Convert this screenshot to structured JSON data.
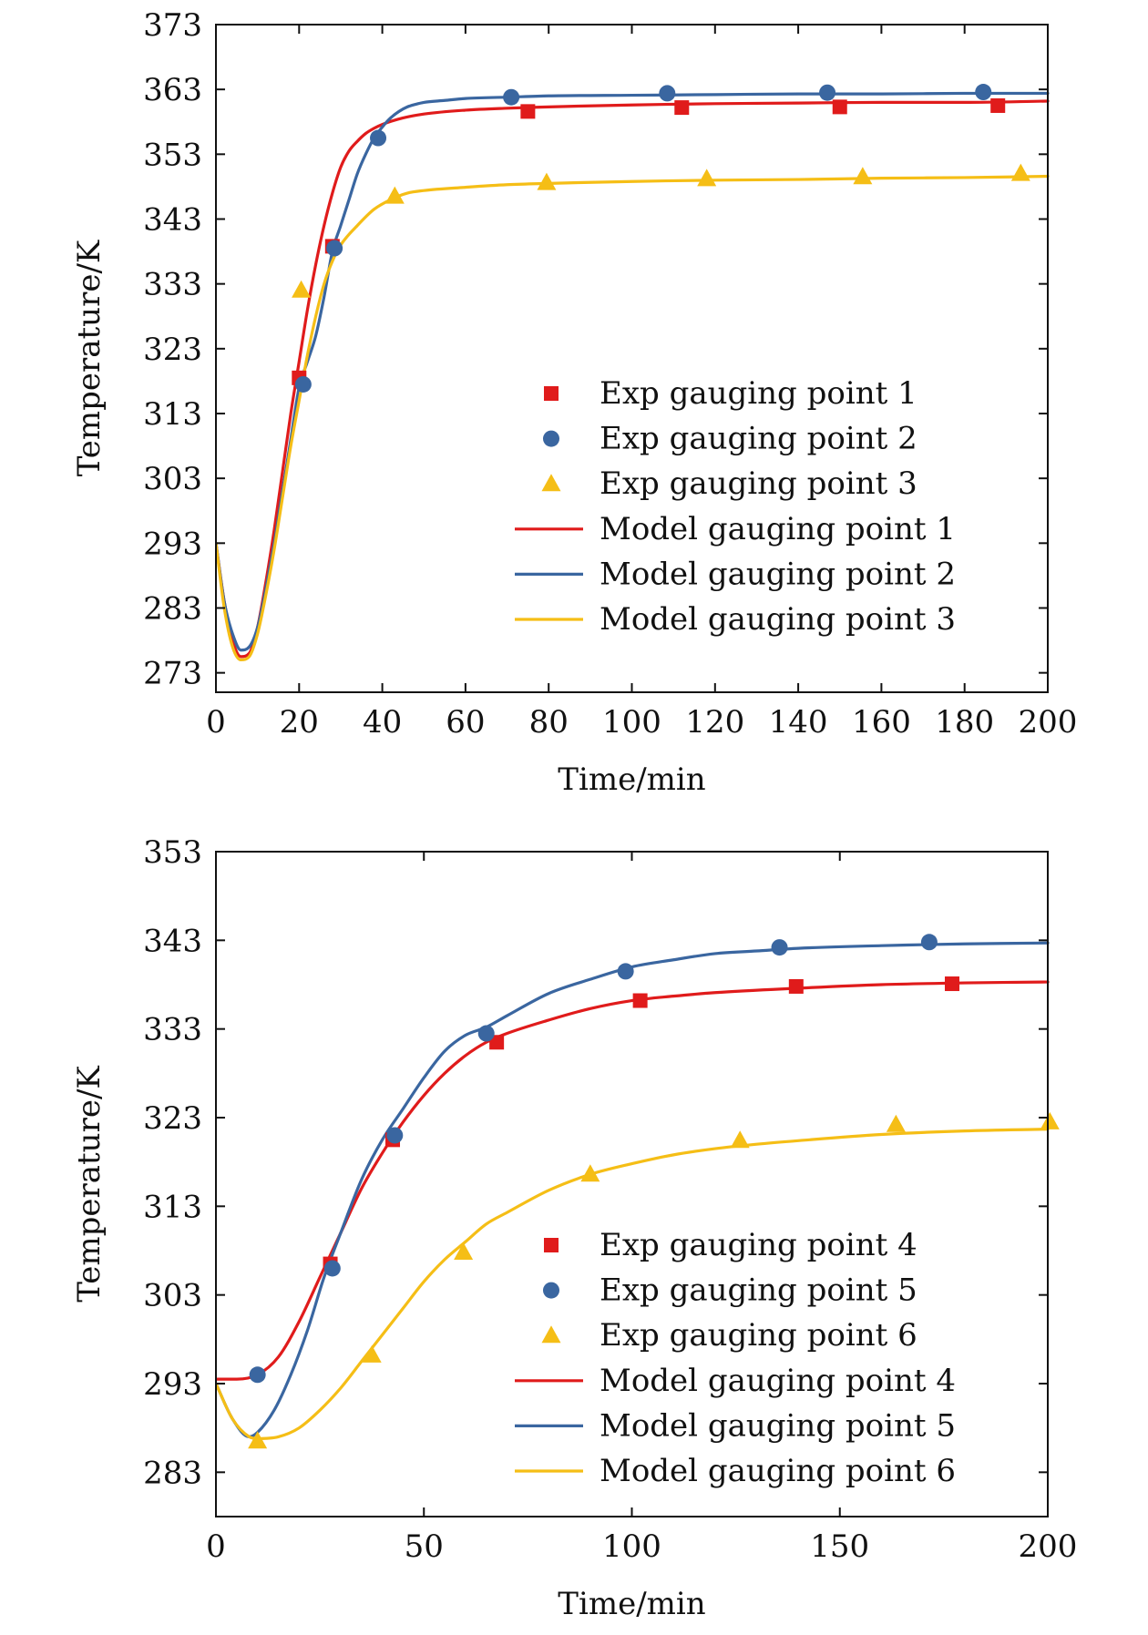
{
  "colors": {
    "red": "#e01b1b",
    "blue": "#3a66a0",
    "yellow": "#f5be16",
    "axis": "#111111"
  },
  "chart_data": [
    {
      "type": "line",
      "xlabel": "Time/min",
      "ylabel": "Temperature/K",
      "xlim": [
        0,
        200
      ],
      "ylim": [
        270,
        373
      ],
      "xticks": [
        0,
        20,
        40,
        60,
        80,
        100,
        120,
        140,
        160,
        180,
        200
      ],
      "yticks": [
        273,
        283,
        293,
        303,
        313,
        323,
        333,
        343,
        353,
        363,
        373
      ],
      "grid": false,
      "legend_position": "bottom-right",
      "series": [
        {
          "name": "Exp gauging point 1",
          "kind": "scatter",
          "marker": "square",
          "color": "red",
          "x": [
            20,
            28,
            75,
            112,
            150,
            188
          ],
          "y": [
            318.5,
            338.8,
            359.6,
            360.2,
            360.3,
            360.5
          ]
        },
        {
          "name": "Exp gauging point 2",
          "kind": "scatter",
          "marker": "circle",
          "color": "blue",
          "x": [
            21,
            28.5,
            39,
            71,
            108.5,
            147,
            184.5
          ],
          "y": [
            317.5,
            338.5,
            355.5,
            361.8,
            362.4,
            362.5,
            362.6
          ]
        },
        {
          "name": "Exp gauging point 3",
          "kind": "scatter",
          "marker": "triangle",
          "color": "yellow",
          "x": [
            20.5,
            43,
            79.5,
            118,
            155.5,
            193.5
          ],
          "y": [
            332,
            346.5,
            348.6,
            349.2,
            349.5,
            350
          ]
        },
        {
          "name": "Model gauging point 1",
          "kind": "line",
          "color": "red",
          "x": [
            0,
            2,
            4,
            6,
            8,
            10,
            12,
            14,
            16,
            18,
            20,
            22,
            24,
            26,
            28,
            30,
            32,
            34,
            36,
            38,
            40,
            45,
            50,
            60,
            70,
            80,
            100,
            120,
            140,
            160,
            180,
            200
          ],
          "y": [
            293,
            284,
            278,
            275.5,
            276,
            280,
            287,
            295,
            304,
            313,
            321,
            329,
            336,
            342,
            347,
            351,
            353.5,
            355,
            356.2,
            357,
            357.6,
            358.6,
            359.2,
            359.8,
            360.1,
            360.3,
            360.6,
            360.8,
            360.9,
            361,
            361,
            361.2
          ]
        },
        {
          "name": "Model gauging point 2",
          "kind": "line",
          "color": "blue",
          "x": [
            0,
            2,
            4,
            6,
            8,
            10,
            12,
            14,
            16,
            18,
            20,
            22,
            24,
            26,
            28,
            30,
            32,
            34,
            36,
            38,
            40,
            42,
            44,
            46,
            48,
            50,
            55,
            60,
            70,
            80,
            100,
            120,
            140,
            160,
            180,
            200
          ],
          "y": [
            293,
            284,
            279,
            276.5,
            277,
            280,
            286,
            293,
            301,
            309,
            317,
            321,
            325,
            331,
            338,
            342,
            346,
            350,
            353,
            355.5,
            357.2,
            358.6,
            359.6,
            360.3,
            360.7,
            361,
            361.3,
            361.6,
            361.8,
            362,
            362.1,
            362.2,
            362.3,
            362.3,
            362.4,
            362.4
          ]
        },
        {
          "name": "Model gauging point 3",
          "kind": "line",
          "color": "yellow",
          "x": [
            0,
            2,
            4,
            6,
            8,
            10,
            12,
            14,
            16,
            18,
            20,
            22,
            24,
            26,
            28,
            30,
            34,
            38,
            42,
            46,
            50,
            60,
            70,
            80,
            100,
            120,
            140,
            160,
            180,
            200
          ],
          "y": [
            293,
            283,
            277,
            275,
            275.5,
            279,
            285,
            292,
            300,
            308,
            315,
            322,
            328,
            333,
            336.5,
            339,
            342,
            344.5,
            346,
            347,
            347.4,
            347.9,
            348.3,
            348.5,
            348.8,
            349,
            349.1,
            349.3,
            349.4,
            349.6
          ]
        }
      ]
    },
    {
      "type": "line",
      "xlabel": "Time/min",
      "ylabel": "Temperature/K",
      "xlim": [
        0,
        200
      ],
      "ylim": [
        278,
        353
      ],
      "xticks": [
        0,
        50,
        100,
        150,
        200
      ],
      "yticks": [
        283,
        293,
        303,
        313,
        323,
        333,
        343,
        353
      ],
      "grid": false,
      "legend_position": "bottom-right",
      "series": [
        {
          "name": "Exp gauging point 4",
          "kind": "scatter",
          "marker": "square",
          "color": "red",
          "x": [
            27.5,
            42.5,
            67.5,
            102,
            139.5,
            177
          ],
          "y": [
            306.5,
            320.5,
            331.5,
            336.2,
            337.8,
            338.1
          ]
        },
        {
          "name": "Exp gauging point 5",
          "kind": "scatter",
          "marker": "circle",
          "color": "blue",
          "x": [
            10,
            28,
            43,
            65,
            98.5,
            135.5,
            171.5
          ],
          "y": [
            294,
            306,
            321,
            332.5,
            339.5,
            342.2,
            342.8
          ]
        },
        {
          "name": "Exp gauging point 6",
          "kind": "scatter",
          "marker": "triangle",
          "color": "yellow",
          "x": [
            10,
            37.5,
            59.5,
            90,
            126,
            163.5,
            200.5
          ],
          "y": [
            286.5,
            296.2,
            307.8,
            316.6,
            320.4,
            322.2,
            322.5
          ]
        },
        {
          "name": "Model gauging point 4",
          "kind": "line",
          "color": "red",
          "x": [
            0,
            5,
            10,
            15,
            20,
            25,
            30,
            35,
            40,
            45,
            50,
            55,
            60,
            65,
            70,
            80,
            90,
            100,
            110,
            120,
            140,
            160,
            180,
            200
          ],
          "y": [
            293.5,
            293.5,
            294,
            296,
            300,
            305,
            310,
            315,
            319,
            322.5,
            325.5,
            328,
            330,
            331.5,
            332.5,
            334,
            335.3,
            336.2,
            336.7,
            337.1,
            337.6,
            338,
            338.2,
            338.3
          ]
        },
        {
          "name": "Model gauging point 5",
          "kind": "line",
          "color": "blue",
          "x": [
            0,
            4,
            8,
            10,
            14,
            18,
            22,
            26,
            30,
            35,
            40,
            45,
            50,
            55,
            60,
            65,
            70,
            80,
            90,
            100,
            110,
            120,
            130,
            140,
            160,
            180,
            200
          ],
          "y": [
            293,
            289,
            287,
            287.5,
            290,
            294,
            299,
            305,
            310,
            316,
            320.5,
            324,
            327.5,
            330.5,
            332.3,
            333.2,
            334.5,
            337,
            338.6,
            340,
            340.8,
            341.5,
            341.8,
            342.1,
            342.4,
            342.6,
            342.7
          ]
        },
        {
          "name": "Model gauging point 6",
          "kind": "line",
          "color": "yellow",
          "x": [
            0,
            4,
            8,
            10,
            15,
            20,
            25,
            30,
            35,
            40,
            45,
            50,
            55,
            60,
            65,
            70,
            80,
            90,
            100,
            110,
            120,
            130,
            140,
            160,
            180,
            200
          ],
          "y": [
            293,
            289,
            287,
            286.8,
            287,
            288,
            290,
            292.5,
            295.5,
            298.5,
            301.5,
            304.5,
            307,
            309,
            311,
            312.3,
            314.8,
            316.6,
            317.8,
            318.8,
            319.5,
            320,
            320.4,
            321.1,
            321.5,
            321.7
          ]
        }
      ]
    }
  ]
}
